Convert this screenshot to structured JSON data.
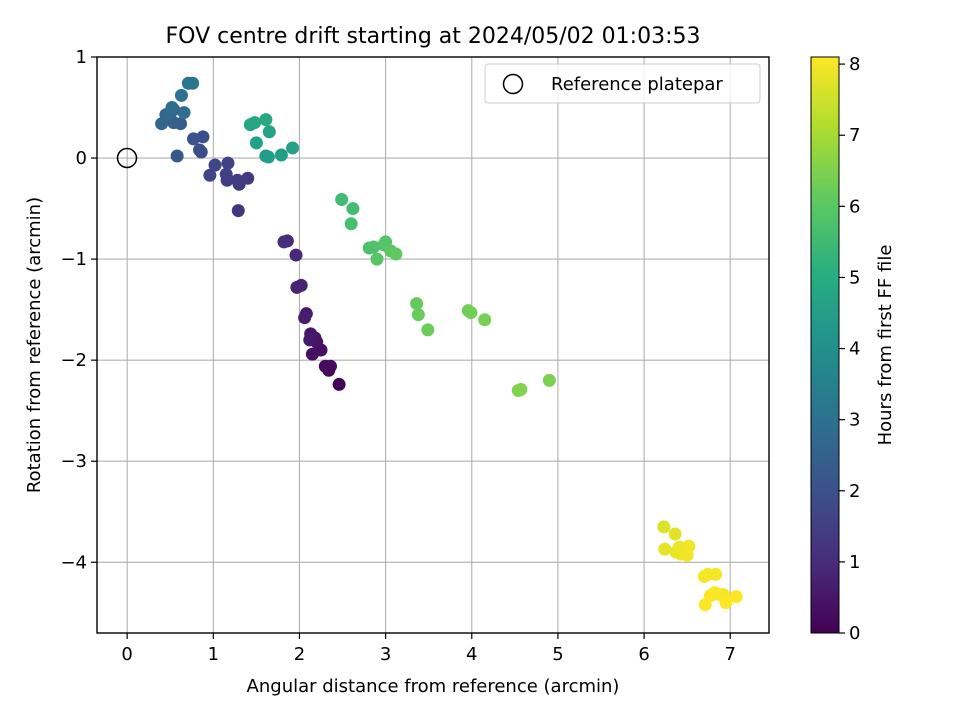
{
  "chart_data": {
    "type": "scatter",
    "title": "FOV centre drift starting at 2024/05/02 01:03:53",
    "xlabel": "Angular distance from reference (arcmin)",
    "ylabel": "Rotation from reference (arcmin)",
    "xlim": [
      -0.35,
      7.45
    ],
    "ylim": [
      -4.7,
      1.0
    ],
    "xticks": [
      0,
      1,
      2,
      3,
      4,
      5,
      6,
      7
    ],
    "xtick_labels": [
      "0",
      "1",
      "2",
      "3",
      "4",
      "5",
      "6",
      "7"
    ],
    "yticks": [
      1,
      0,
      -1,
      -2,
      -3,
      -4
    ],
    "ytick_labels": [
      "1",
      "0",
      "−1",
      "−2",
      "−3",
      "−4"
    ],
    "grid": true,
    "legend": {
      "position": "top-right",
      "label": "Reference platepar",
      "marker": "open-circle"
    },
    "reference_point": {
      "x": 0,
      "y": 0
    },
    "colorbar": {
      "label": "Hours from first FF file",
      "colormap": "viridis",
      "range": [
        0,
        8.1
      ],
      "ticks": [
        0,
        1,
        2,
        3,
        4,
        5,
        6,
        7,
        8
      ],
      "tick_labels": [
        "0",
        "1",
        "2",
        "3",
        "4",
        "5",
        "6",
        "7",
        "8"
      ]
    },
    "points": [
      {
        "x": 2.46,
        "y": -2.24,
        "t": 0.05
      },
      {
        "x": 2.34,
        "y": -2.1,
        "t": 0.15
      },
      {
        "x": 2.3,
        "y": -2.06,
        "t": 0.2
      },
      {
        "x": 2.36,
        "y": -2.06,
        "t": 0.25
      },
      {
        "x": 2.25,
        "y": -1.9,
        "t": 0.3
      },
      {
        "x": 2.15,
        "y": -1.94,
        "t": 0.35
      },
      {
        "x": 2.2,
        "y": -1.82,
        "t": 0.4
      },
      {
        "x": 2.18,
        "y": -1.78,
        "t": 0.45
      },
      {
        "x": 2.13,
        "y": -1.74,
        "t": 0.5
      },
      {
        "x": 2.12,
        "y": -1.8,
        "t": 0.55
      },
      {
        "x": 2.08,
        "y": -1.54,
        "t": 0.6
      },
      {
        "x": 2.06,
        "y": -1.58,
        "t": 0.65
      },
      {
        "x": 2.02,
        "y": -1.26,
        "t": 0.75
      },
      {
        "x": 1.97,
        "y": -1.28,
        "t": 0.8
      },
      {
        "x": 1.96,
        "y": -0.96,
        "t": 0.9
      },
      {
        "x": 1.86,
        "y": -0.82,
        "t": 1.0
      },
      {
        "x": 1.82,
        "y": -0.83,
        "t": 1.05
      },
      {
        "x": 1.29,
        "y": -0.52,
        "t": 1.25
      },
      {
        "x": 1.4,
        "y": -0.2,
        "t": 1.35
      },
      {
        "x": 1.3,
        "y": -0.26,
        "t": 1.4
      },
      {
        "x": 1.28,
        "y": -0.22,
        "t": 1.45
      },
      {
        "x": 1.16,
        "y": -0.22,
        "t": 1.5
      },
      {
        "x": 1.15,
        "y": -0.16,
        "t": 1.55
      },
      {
        "x": 1.17,
        "y": -0.05,
        "t": 1.6
      },
      {
        "x": 0.96,
        "y": -0.17,
        "t": 1.7
      },
      {
        "x": 1.02,
        "y": -0.07,
        "t": 1.75
      },
      {
        "x": 0.86,
        "y": 0.06,
        "t": 1.9
      },
      {
        "x": 0.84,
        "y": 0.08,
        "t": 1.95
      },
      {
        "x": 0.88,
        "y": 0.21,
        "t": 2.0
      },
      {
        "x": 0.77,
        "y": 0.19,
        "t": 2.1
      },
      {
        "x": 0.58,
        "y": 0.02,
        "t": 2.2
      },
      {
        "x": 0.62,
        "y": 0.34,
        "t": 2.4
      },
      {
        "x": 0.54,
        "y": 0.35,
        "t": 2.45
      },
      {
        "x": 0.4,
        "y": 0.34,
        "t": 2.6
      },
      {
        "x": 0.45,
        "y": 0.43,
        "t": 2.65
      },
      {
        "x": 0.5,
        "y": 0.44,
        "t": 2.7
      },
      {
        "x": 0.54,
        "y": 0.48,
        "t": 2.75
      },
      {
        "x": 0.52,
        "y": 0.5,
        "t": 2.85
      },
      {
        "x": 0.66,
        "y": 0.45,
        "t": 2.9
      },
      {
        "x": 0.63,
        "y": 0.62,
        "t": 3.0
      },
      {
        "x": 0.71,
        "y": 0.74,
        "t": 3.15
      },
      {
        "x": 0.76,
        "y": 0.74,
        "t": 3.2
      },
      {
        "x": 1.61,
        "y": 0.02,
        "t": 4.45
      },
      {
        "x": 1.64,
        "y": 0.01,
        "t": 4.5
      },
      {
        "x": 1.79,
        "y": 0.03,
        "t": 4.55
      },
      {
        "x": 1.5,
        "y": 0.15,
        "t": 4.6
      },
      {
        "x": 1.92,
        "y": 0.1,
        "t": 4.65
      },
      {
        "x": 1.65,
        "y": 0.26,
        "t": 4.7
      },
      {
        "x": 1.43,
        "y": 0.33,
        "t": 4.75
      },
      {
        "x": 1.48,
        "y": 0.35,
        "t": 4.8
      },
      {
        "x": 1.61,
        "y": 0.38,
        "t": 4.85
      },
      {
        "x": 2.49,
        "y": -0.41,
        "t": 5.6
      },
      {
        "x": 2.62,
        "y": -0.5,
        "t": 5.65
      },
      {
        "x": 2.6,
        "y": -0.65,
        "t": 5.7
      },
      {
        "x": 2.81,
        "y": -0.89,
        "t": 5.75
      },
      {
        "x": 2.86,
        "y": -0.88,
        "t": 5.8
      },
      {
        "x": 2.98,
        "y": -0.86,
        "t": 5.85
      },
      {
        "x": 3.0,
        "y": -0.83,
        "t": 5.9
      },
      {
        "x": 2.9,
        "y": -1.0,
        "t": 5.95
      },
      {
        "x": 3.06,
        "y": -0.92,
        "t": 6.0
      },
      {
        "x": 3.12,
        "y": -0.95,
        "t": 6.05
      },
      {
        "x": 3.36,
        "y": -1.44,
        "t": 6.15
      },
      {
        "x": 3.38,
        "y": -1.55,
        "t": 6.2
      },
      {
        "x": 3.49,
        "y": -1.7,
        "t": 6.25
      },
      {
        "x": 3.96,
        "y": -1.51,
        "t": 6.3
      },
      {
        "x": 3.99,
        "y": -1.53,
        "t": 6.35
      },
      {
        "x": 4.15,
        "y": -1.6,
        "t": 6.4
      },
      {
        "x": 4.9,
        "y": -2.2,
        "t": 6.45
      },
      {
        "x": 4.54,
        "y": -2.3,
        "t": 6.5
      },
      {
        "x": 4.57,
        "y": -2.29,
        "t": 6.55
      },
      {
        "x": 6.23,
        "y": -3.65,
        "t": 7.7
      },
      {
        "x": 6.36,
        "y": -3.72,
        "t": 7.75
      },
      {
        "x": 6.24,
        "y": -3.87,
        "t": 7.8
      },
      {
        "x": 6.41,
        "y": -3.85,
        "t": 7.85
      },
      {
        "x": 6.37,
        "y": -3.9,
        "t": 7.9
      },
      {
        "x": 6.43,
        "y": -3.92,
        "t": 7.9
      },
      {
        "x": 6.52,
        "y": -3.84,
        "t": 7.95
      },
      {
        "x": 6.5,
        "y": -3.93,
        "t": 7.95
      },
      {
        "x": 6.7,
        "y": -4.14,
        "t": 8.0
      },
      {
        "x": 6.74,
        "y": -4.12,
        "t": 8.0
      },
      {
        "x": 6.83,
        "y": -4.12,
        "t": 8.0
      },
      {
        "x": 6.77,
        "y": -4.33,
        "t": 8.05
      },
      {
        "x": 6.82,
        "y": -4.3,
        "t": 8.05
      },
      {
        "x": 6.88,
        "y": -4.32,
        "t": 8.05
      },
      {
        "x": 6.92,
        "y": -4.32,
        "t": 8.05
      },
      {
        "x": 6.95,
        "y": -4.4,
        "t": 8.1
      },
      {
        "x": 7.07,
        "y": -4.34,
        "t": 8.1
      },
      {
        "x": 6.71,
        "y": -4.42,
        "t": 8.1
      }
    ]
  }
}
